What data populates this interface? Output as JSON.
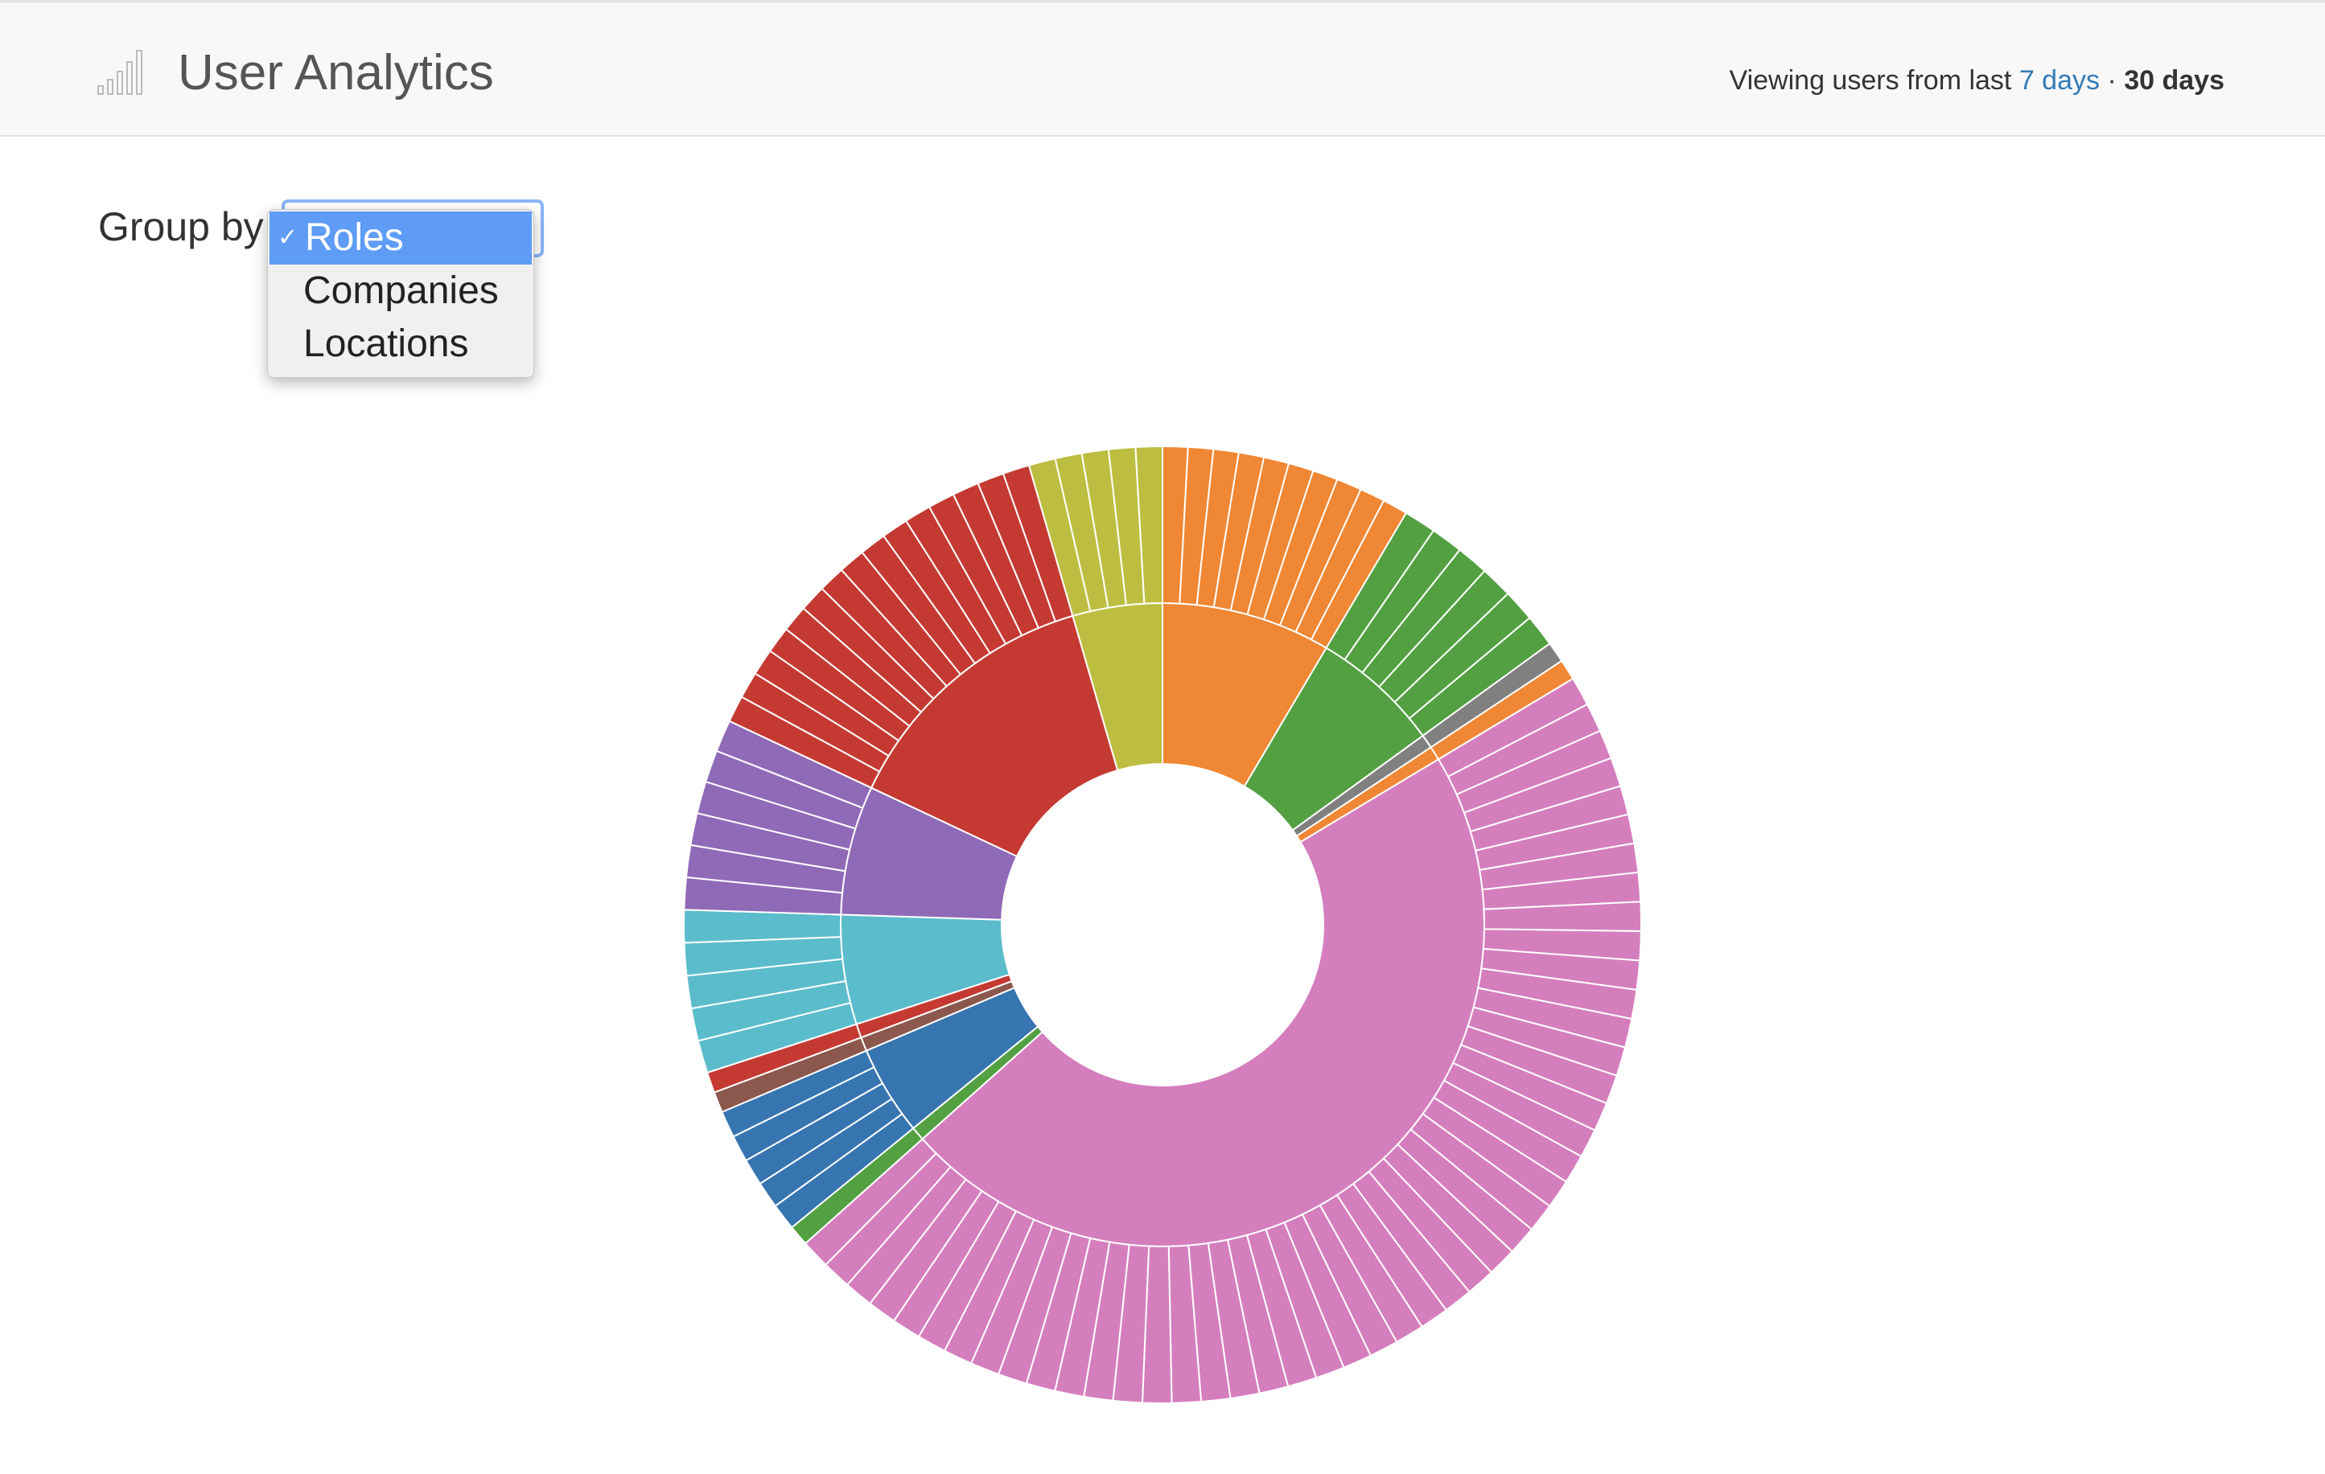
{
  "header": {
    "title": "User Analytics",
    "range_prefix": "Viewing users from last",
    "range_option_7": "7 days",
    "range_separator": " · ",
    "range_option_30": "30 days",
    "logo_icon": "signal-bars-icon"
  },
  "controls": {
    "group_by_label": "Group by",
    "selected": "Roles",
    "options": [
      {
        "label": "Roles",
        "checked": true
      },
      {
        "label": "Companies",
        "checked": false
      },
      {
        "label": "Locations",
        "checked": false
      }
    ],
    "check_glyph": "✓"
  },
  "chart_data": {
    "type": "sunburst",
    "inner_ring": [
      {
        "color": "#ef8734",
        "share": 0.085,
        "outer_count": 10
      },
      {
        "color": "#53a042",
        "share": 0.065,
        "outer_count": 6
      },
      {
        "color": "#808080",
        "share": 0.007,
        "outer_count": 1
      },
      {
        "color": "#ef8734",
        "share": 0.007,
        "outer_count": 1
      },
      {
        "color": "#d57ebe",
        "share": 0.47,
        "outer_count": 48
      },
      {
        "color": "#53a042",
        "share": 0.007,
        "outer_count": 1
      },
      {
        "color": "#3775b0",
        "share": 0.045,
        "outer_count": 5
      },
      {
        "color": "#8c574d",
        "share": 0.007,
        "outer_count": 1
      },
      {
        "color": "#c43a33",
        "share": 0.007,
        "outer_count": 1
      },
      {
        "color": "#5bbccc",
        "share": 0.055,
        "outer_count": 5
      },
      {
        "color": "#8f6ab7",
        "share": 0.065,
        "outer_count": 6
      },
      {
        "color": "#c43a33",
        "share": 0.135,
        "outer_count": 15
      },
      {
        "color": "#bdbe41",
        "share": 0.045,
        "outer_count": 5
      }
    ]
  }
}
